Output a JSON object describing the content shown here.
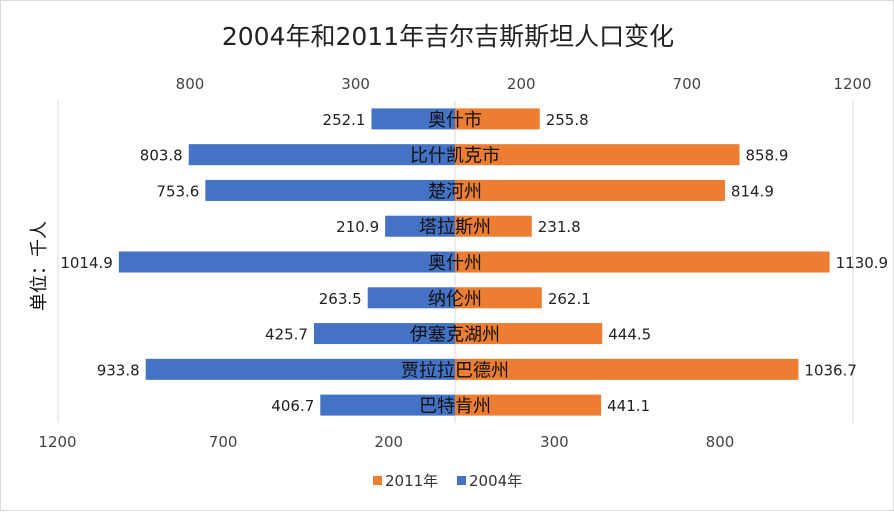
{
  "chart_data": {
    "type": "bar",
    "orientation": "horizontal-butterfly",
    "title": "2004年和2011年吉尔吉斯斯坦人口变化",
    "ylabel": "单位：千人",
    "categories": [
      "奥什市",
      "比什凯克市",
      "楚河州",
      "塔拉斯州",
      "奥什州",
      "纳伦州",
      "伊塞克湖州",
      "贾拉拉巴德州",
      "巴特肯州"
    ],
    "series": [
      {
        "name": "2004年",
        "side": "left",
        "color": "#4472c4",
        "values": [
          252.1,
          803.8,
          753.6,
          210.9,
          1014.9,
          263.5,
          425.7,
          933.8,
          406.7
        ]
      },
      {
        "name": "2011年",
        "side": "right",
        "color": "#ed7d31",
        "values": [
          255.8,
          858.9,
          814.9,
          231.8,
          1130.9,
          262.1,
          444.5,
          1036.7,
          441.1
        ]
      }
    ],
    "value_labels": {
      "left": [
        "252.1",
        "803.8",
        "753.6",
        "210.9",
        "1014.9",
        "263.5",
        "425.7",
        "933.8",
        "406.7"
      ],
      "right": [
        "255.8",
        "858.9",
        "814.9",
        "231.8",
        "1130.9",
        "262.1",
        "444.5",
        "1036.7",
        "441.1"
      ]
    },
    "xlim": [
      -1200,
      1200
    ],
    "top_axis_ticks": [
      {
        "value": -800,
        "label": "800"
      },
      {
        "value": -300,
        "label": "300"
      },
      {
        "value": 200,
        "label": "200"
      },
      {
        "value": 700,
        "label": "700"
      },
      {
        "value": 1200,
        "label": "1200"
      }
    ],
    "bottom_axis_ticks": [
      {
        "value": -1200,
        "label": "1200"
      },
      {
        "value": -700,
        "label": "700"
      },
      {
        "value": -200,
        "label": "200"
      },
      {
        "value": 300,
        "label": "300"
      },
      {
        "value": 800,
        "label": "800"
      }
    ],
    "legend": {
      "position": "bottom",
      "items": [
        {
          "label": "2011年",
          "color": "#ed7d31"
        },
        {
          "label": "2004年",
          "color": "#4472c4"
        }
      ]
    },
    "grid": false
  }
}
